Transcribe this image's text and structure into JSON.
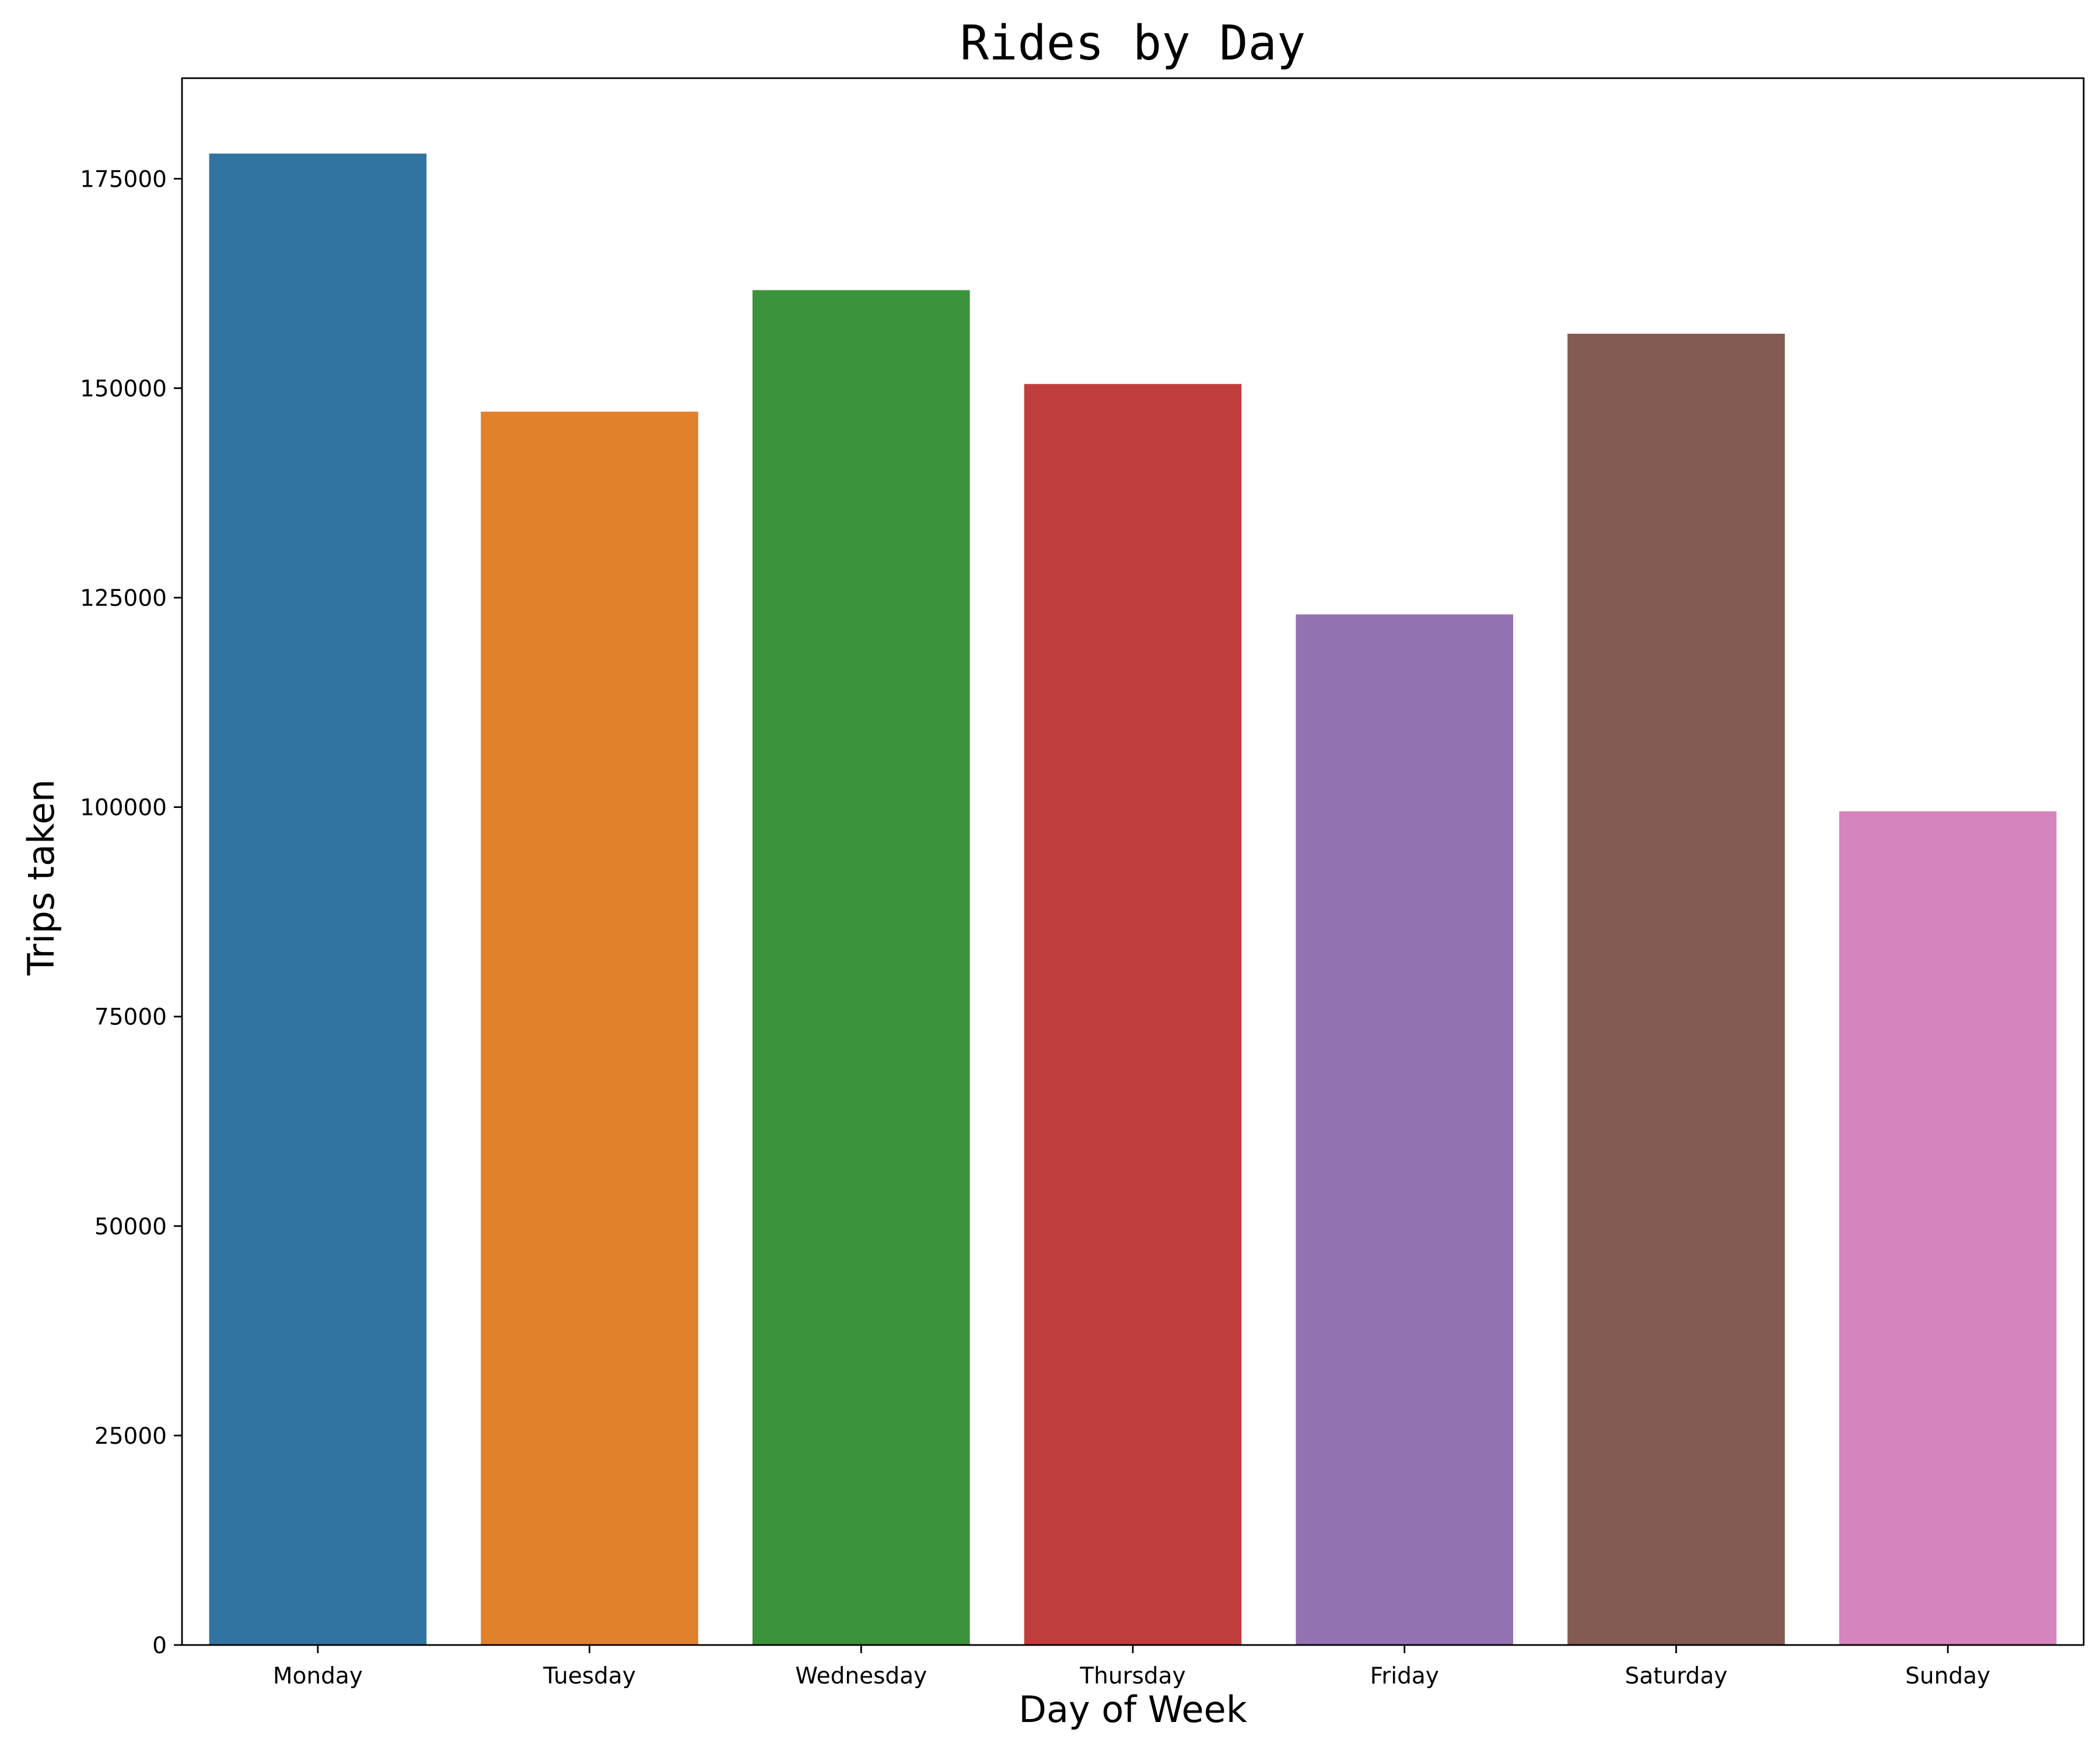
{
  "chart_data": {
    "type": "bar",
    "title": "Rides by Day",
    "xlabel": "Day of Week",
    "ylabel": "Trips taken",
    "categories": [
      "Monday",
      "Tuesday",
      "Wednesday",
      "Thursday",
      "Friday",
      "Saturday",
      "Sunday"
    ],
    "values": [
      178000,
      147200,
      161700,
      150500,
      123000,
      156500,
      99500
    ],
    "colors": [
      "#3274a1",
      "#e1812c",
      "#3a923a",
      "#c03d3e",
      "#9372b2",
      "#845b53",
      "#d684bd"
    ],
    "ylim": [
      0,
      187000
    ],
    "yticks": [
      0,
      25000,
      50000,
      75000,
      100000,
      125000,
      150000,
      175000
    ],
    "grid": false,
    "legend": "none"
  }
}
